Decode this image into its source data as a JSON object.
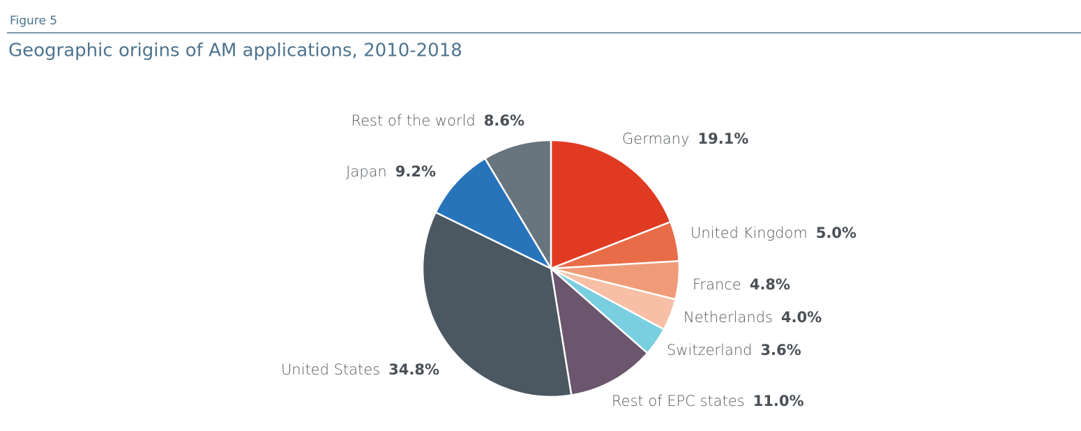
{
  "header": {
    "label": "Figure 5"
  },
  "chart_data": {
    "type": "pie",
    "title": "Geographic origins of AM applications, 2010-2018",
    "categories": [
      "Germany",
      "United Kingdom",
      "France",
      "Netherlands",
      "Switzerland",
      "Rest of EPC states",
      "United States",
      "Japan",
      "Rest of the world"
    ],
    "values": [
      19.1,
      5.0,
      4.8,
      4.0,
      3.6,
      11.0,
      34.8,
      9.2,
      8.6
    ],
    "value_labels": [
      "19.1%",
      "5.0%",
      "4.8%",
      "4.0%",
      "3.6%",
      "11.0%",
      "34.8%",
      "9.2%",
      "8.6%"
    ],
    "colors": [
      "#e03a22",
      "#e86c47",
      "#f09b78",
      "#f7c0a6",
      "#79cfe0",
      "#6b566e",
      "#4b5761",
      "#2874bb",
      "#68757e"
    ]
  }
}
